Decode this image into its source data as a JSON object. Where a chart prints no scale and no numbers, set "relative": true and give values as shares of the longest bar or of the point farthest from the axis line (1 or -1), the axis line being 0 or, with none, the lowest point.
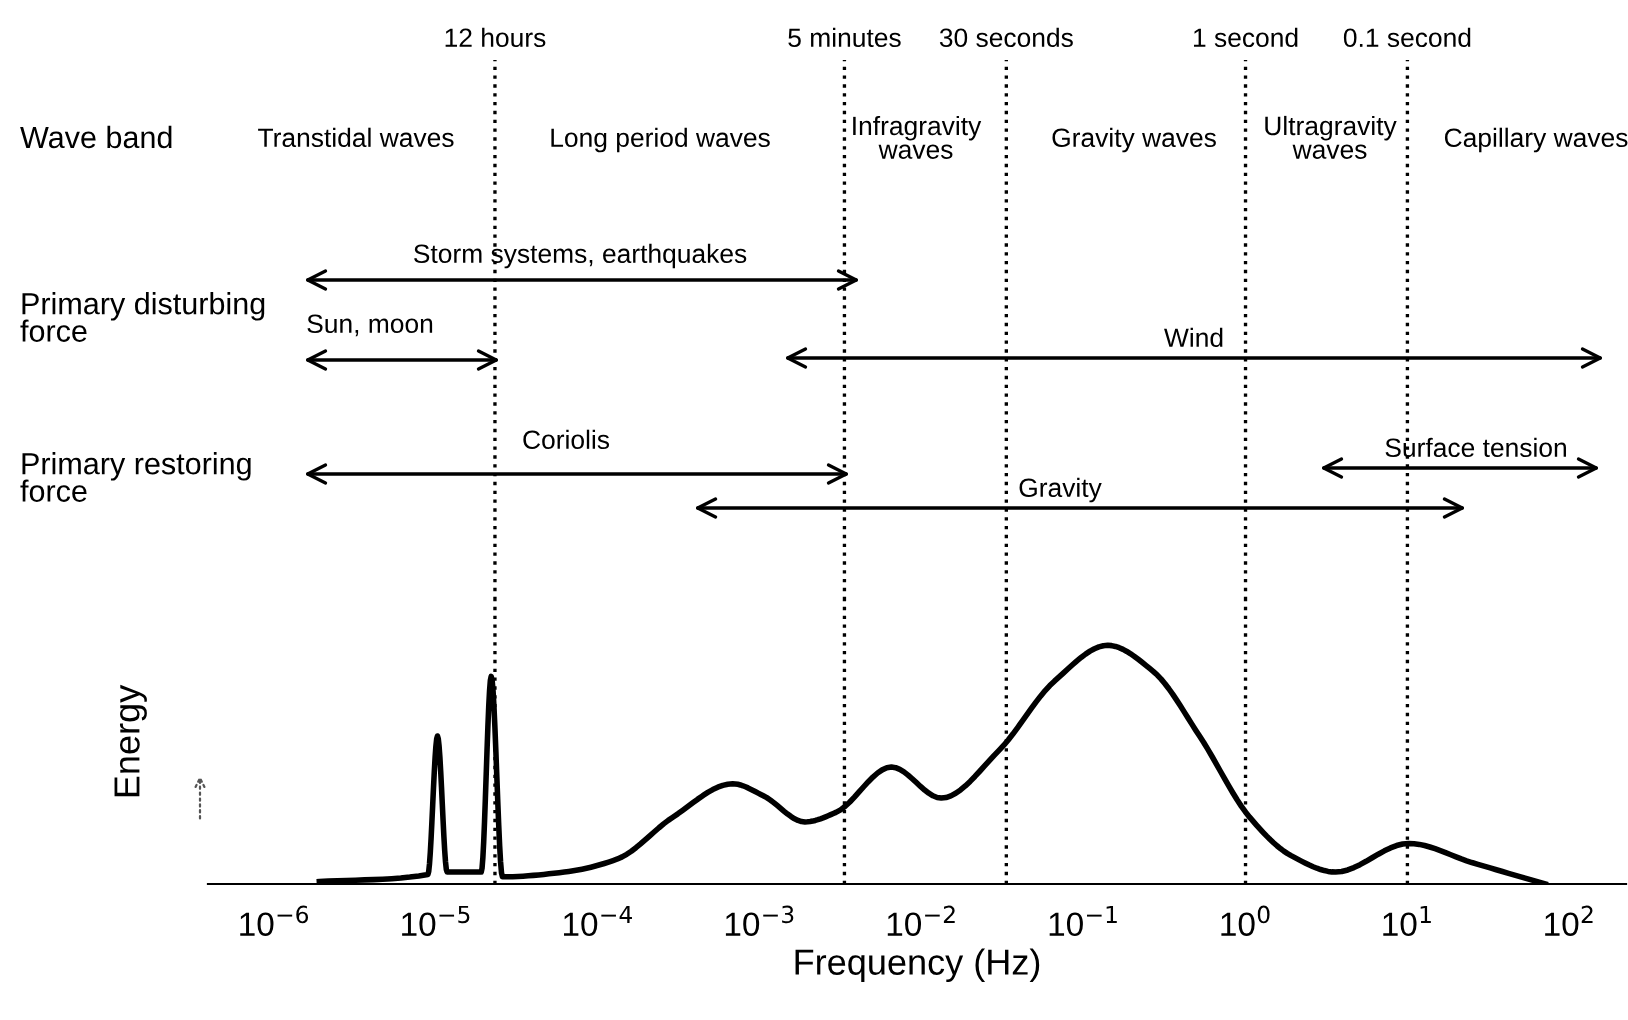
{
  "chart_data": {
    "type": "line",
    "relative": true,
    "xlabel": "Frequency (Hz)",
    "ylabel": "Energy",
    "log": "x",
    "xlim": [
      3.9e-07,
      224
    ],
    "xticks": [
      {
        "value": 1e-06,
        "label": "10$^{−6}$"
      },
      {
        "value": 1e-05,
        "label": "10$^{−5}$"
      },
      {
        "value": 0.0001,
        "label": "10$^{−4}$"
      },
      {
        "value": 0.001,
        "label": "10$^{−3}$"
      },
      {
        "value": 0.01,
        "label": "10$^{−2}$"
      },
      {
        "value": 0.1,
        "label": "10$^{−1}$"
      },
      {
        "value": 1,
        "label": "10$^{0}$"
      },
      {
        "value": 10,
        "label": "10$^{1}$"
      },
      {
        "value": 100,
        "label": "10$^{2}$"
      }
    ],
    "series": [
      {
        "color": "#000000",
        "x": [
          1.9e-06,
          8.9e-06,
          1.02e-05,
          1.17e-05,
          1.9e-05,
          2.19e-05,
          2.57e-05,
          6.2e-05,
          0.000132,
          0.00029,
          0.00068,
          0.00105,
          0.0019,
          0.00295,
          0.0065,
          0.0132,
          0.03,
          0.066,
          0.141,
          0.27,
          0.52,
          1.06,
          1.9,
          3.6,
          10.2,
          25,
          71
        ],
        "values": [
          0.01,
          0.04,
          0.62,
          0.05,
          0.05,
          0.87,
          0.03,
          0.05,
          0.105,
          0.28,
          0.42,
          0.37,
          0.26,
          0.3,
          0.49,
          0.36,
          0.56,
          0.85,
          1.0,
          0.89,
          0.62,
          0.28,
          0.12,
          0.05,
          0.17,
          0.09,
          0.0
        ]
      }
    ],
    "ref_lines": [
      {
        "axis": "x",
        "value": 2.31e-05,
        "label": "12 hours",
        "line_style": "dotted",
        "color": "#000000"
      },
      {
        "axis": "x",
        "value": 0.00333,
        "label": "5 minutes",
        "line_style": "dotted",
        "color": "#000000"
      },
      {
        "axis": "x",
        "value": 0.0333,
        "label": "30 seconds",
        "line_style": "dotted",
        "color": "#000000"
      },
      {
        "axis": "x",
        "value": 1,
        "label": "1 second",
        "line_style": "dotted",
        "color": "#000000"
      },
      {
        "axis": "x",
        "value": 10,
        "label": "0.1 second",
        "line_style": "dotted",
        "color": "#000000"
      }
    ],
    "annotations": [
      "Wave band",
      "Primary disturbing\nforce",
      "Primary restoring\nforce",
      "Transtidal waves",
      "Long period waves",
      "Infragravity\nwaves",
      "Gravity waves",
      "Ultragravity\nwaves",
      "Capillary waves",
      "Storm systems, earthquakes",
      "Sun, moon",
      "Wind",
      "Coriolis",
      "Surface tension",
      "Gravity"
    ]
  }
}
